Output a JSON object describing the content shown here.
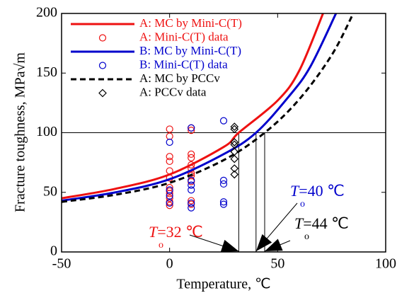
{
  "chart_data": {
    "type": "line",
    "xlabel": "Temperature, ℃",
    "ylabel": "Fracture toughness, MPa√m",
    "xlim": [
      -50,
      100
    ],
    "xticks": [
      -50,
      0,
      50,
      100
    ],
    "ylim": [
      0,
      200
    ],
    "yticks": [
      0,
      50,
      100,
      150,
      200
    ],
    "series": [
      {
        "name": "A: MC by Mini-C(T)",
        "color": "#ee1111",
        "kind": "line",
        "x": [
          -50,
          -25,
          0,
          25,
          32,
          50,
          60,
          71
        ],
        "values": [
          45,
          53,
          65,
          88,
          100,
          127,
          152,
          200
        ]
      },
      {
        "name": "A: Mini-C(T) data",
        "color": "#ee1111",
        "kind": "circle",
        "x": [
          0,
          0,
          0,
          0,
          0,
          0,
          0,
          0,
          0,
          0,
          0,
          0,
          10,
          10,
          10,
          10,
          10,
          10,
          10,
          10,
          10,
          10,
          10
        ],
        "values": [
          103,
          97,
          80,
          76,
          68,
          62,
          54,
          51,
          49,
          45,
          42,
          39,
          104,
          102,
          82,
          79,
          73,
          70,
          66,
          64,
          59,
          43,
          40
        ]
      },
      {
        "name": "B: MC by Mini-C(T)",
        "color": "#0000cc",
        "kind": "line",
        "x": [
          -50,
          -25,
          0,
          25,
          40,
          55,
          65,
          77
        ],
        "values": [
          43,
          50,
          61,
          82,
          100,
          130,
          155,
          200
        ]
      },
      {
        "name": "B: Mini-C(T) data",
        "color": "#0000cc",
        "kind": "circle",
        "x": [
          0,
          0,
          0,
          0,
          10,
          10,
          10,
          10,
          10,
          10,
          25,
          25,
          25,
          25,
          25
        ],
        "values": [
          92,
          52,
          47,
          41,
          104,
          60,
          56,
          52,
          41,
          37,
          110,
          60,
          57,
          42,
          40
        ]
      },
      {
        "name": "A: MC by PCCv",
        "color": "#000000",
        "kind": "dashed",
        "x": [
          -50,
          -25,
          0,
          25,
          44,
          60,
          75,
          85
        ],
        "values": [
          42,
          48,
          58,
          77,
          100,
          128,
          165,
          200
        ]
      },
      {
        "name": "A: PCCv data",
        "color": "#000000",
        "kind": "diamond",
        "x": [
          30,
          30,
          30,
          30,
          30,
          30,
          30,
          30
        ],
        "values": [
          105,
          103,
          92,
          90,
          84,
          78,
          70,
          65
        ]
      }
    ],
    "reference_lines": {
      "y": 100,
      "x": [
        32,
        40,
        44
      ]
    },
    "annotations": [
      {
        "symbol": "T",
        "sub": "o",
        "text": "=32 ℃",
        "x": 32,
        "color": "#ee1111"
      },
      {
        "symbol": "T",
        "sub": "o",
        "text": "=40 ℃",
        "x": 40,
        "color": "#0000cc"
      },
      {
        "symbol": "T",
        "sub": "o",
        "text": "=44 ℃",
        "x": 44,
        "color": "#000000"
      }
    ]
  }
}
